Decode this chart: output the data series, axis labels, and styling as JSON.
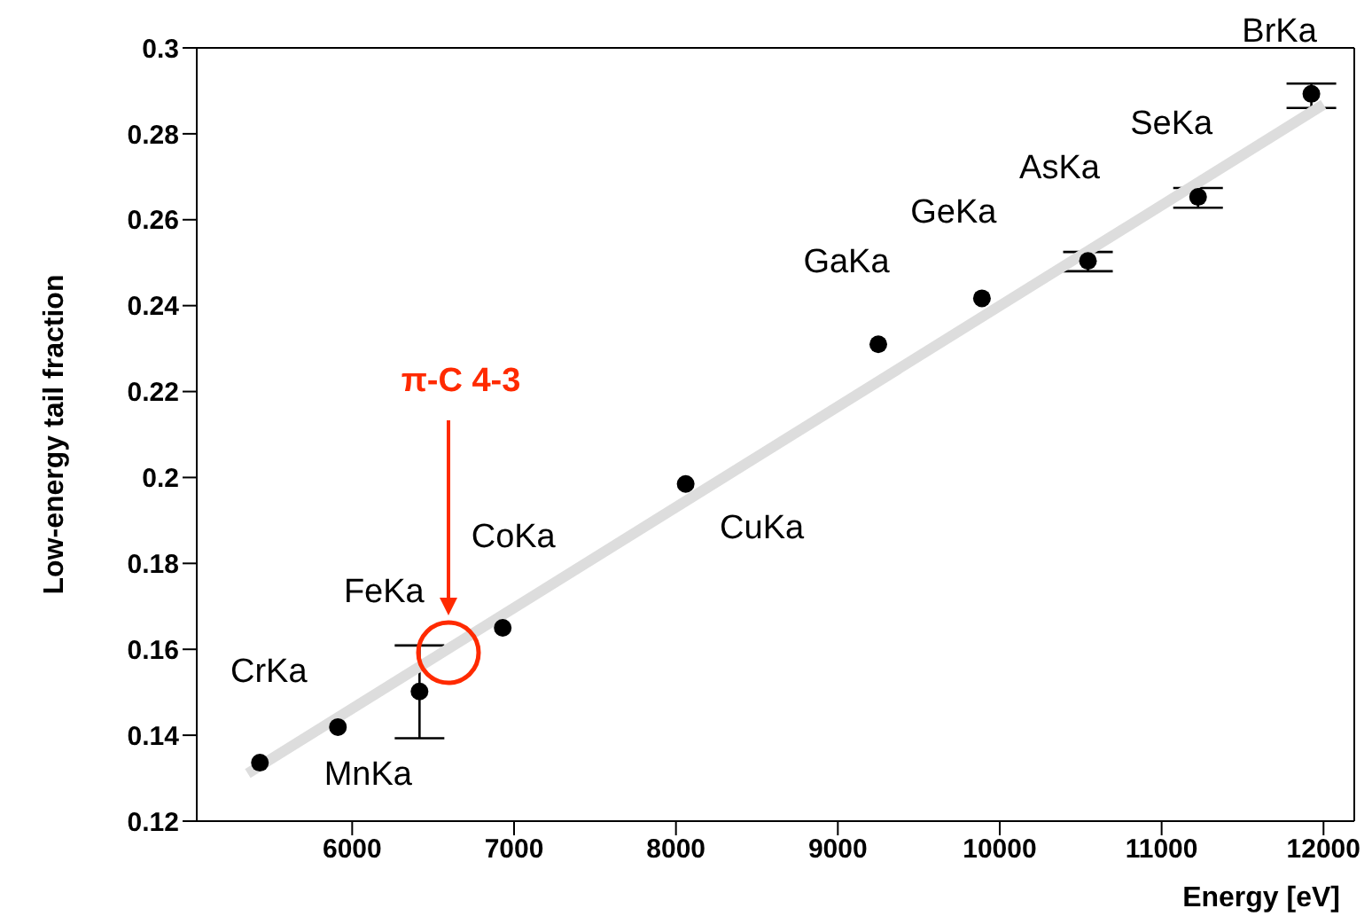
{
  "chart_data": {
    "type": "scatter",
    "xlabel": "Energy [eV]",
    "ylabel": "Low-energy tail fraction",
    "xlim": [
      5040,
      12190
    ],
    "xticks": [
      6000,
      7000,
      8000,
      9000,
      10000,
      11000,
      12000
    ],
    "ylim": [
      0.12,
      0.3
    ],
    "yticks": [
      0.12,
      0.14,
      0.16,
      0.18,
      0.2,
      0.22,
      0.24,
      0.26,
      0.28,
      0.3
    ],
    "marker": "circle",
    "grid": false,
    "series": [
      {
        "color": "#000000",
        "x": [
          5430,
          5912,
          6416,
          6930,
          8060,
          9250,
          9890,
          10545,
          11225,
          11925
        ],
        "values": [
          0.1336,
          0.1419,
          0.1502,
          0.165,
          0.1985,
          0.231,
          0.2417,
          0.2504,
          0.2653,
          0.2893
        ],
        "errors": [
          null,
          null,
          [
            0.1393,
            0.1609
          ],
          null,
          null,
          null,
          null,
          [
            0.248,
            0.2525
          ],
          [
            0.2628,
            0.2674
          ],
          [
            0.286,
            0.2917
          ]
        ]
      },
      {
        "type": "line",
        "marker": "none",
        "color": "#dddddd",
        "x": [
          5355,
          12000
        ],
        "values": [
          0.1311,
          0.2868
        ]
      }
    ],
    "annotations": [
      {
        "text": "CrKa",
        "x": 5430,
        "y": 0.1336
      },
      {
        "text": "MnKa",
        "x": 5912,
        "y": 0.1419
      },
      {
        "text": "FeKa",
        "x": 6416,
        "y": 0.1502
      },
      {
        "text": "CoKa",
        "x": 6930,
        "y": 0.165
      },
      {
        "text": "CuKa",
        "x": 8060,
        "y": 0.1985
      },
      {
        "text": "GaKa",
        "x": 9250,
        "y": 0.231
      },
      {
        "text": "GeKa",
        "x": 9890,
        "y": 0.2417
      },
      {
        "text": "AsKa",
        "x": 10545,
        "y": 0.2504
      },
      {
        "text": "SeKa",
        "x": 11225,
        "y": 0.2653
      },
      {
        "text": "BrKa",
        "x": 11925,
        "y": 0.2893
      },
      "π-C 4-3"
    ]
  }
}
